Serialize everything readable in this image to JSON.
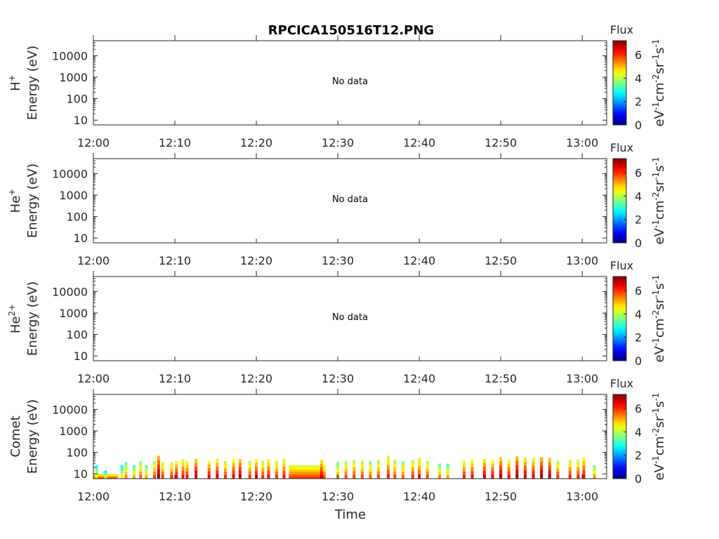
{
  "title": "RPCICA150516T12.PNG",
  "xlabel": "Time",
  "x_ticks": [
    "12:00",
    "12:10",
    "12:20",
    "12:30",
    "12:40",
    "12:50",
    "13:00"
  ],
  "y_ticks": [
    "10",
    "100",
    "1000",
    "10000"
  ],
  "colorbar": {
    "title": "Flux",
    "ticks": [
      "0",
      "2",
      "4",
      "6"
    ],
    "unit_base": [
      "eV",
      "cm",
      "sr",
      "s"
    ],
    "unit_exp": [
      "-1",
      "-2",
      "-1",
      "-1"
    ],
    "range": [
      0,
      7.2
    ],
    "colormap": "jet"
  },
  "no_data_text": "No data",
  "chart_data": [
    {
      "type": "heatmap",
      "species_base": "H",
      "species_sup": "+",
      "ylabel": "Energy (eV)",
      "yscale": "log",
      "ylim": [
        6,
        50000
      ],
      "xlim": [
        "12:00",
        "13:03"
      ],
      "has_data": false
    },
    {
      "type": "heatmap",
      "species_base": "He",
      "species_sup": "+",
      "ylabel": "Energy (eV)",
      "yscale": "log",
      "ylim": [
        6,
        50000
      ],
      "xlim": [
        "12:00",
        "13:03"
      ],
      "has_data": false
    },
    {
      "type": "heatmap",
      "species_base": "He",
      "species_sup": "2+",
      "ylabel": "Energy (eV)",
      "yscale": "log",
      "ylim": [
        6,
        50000
      ],
      "xlim": [
        "12:00",
        "13:03"
      ],
      "has_data": false
    },
    {
      "type": "heatmap",
      "species_base": "Comet",
      "species_sup": "",
      "ylabel": "Energy (eV)",
      "yscale": "log",
      "ylim": [
        6,
        50000
      ],
      "xlim": [
        "12:00",
        "13:03"
      ],
      "has_data": true,
      "x_unit": "minutes after 12:00",
      "bursts": [
        {
          "t": 0.4,
          "e_max": 25,
          "flux": 4.5
        },
        {
          "t": 1.5,
          "e_max": 14,
          "flux": 4.2
        },
        {
          "t": 3.5,
          "e_max": 25,
          "flux": 4.4
        },
        {
          "t": 4.0,
          "e_max": 35,
          "flux": 5.2
        },
        {
          "t": 5.0,
          "e_max": 25,
          "flux": 5.0
        },
        {
          "t": 5.8,
          "e_max": 40,
          "flux": 5.4
        },
        {
          "t": 6.5,
          "e_max": 25,
          "flux": 5.0
        },
        {
          "t": 7.5,
          "e_max": 40,
          "flux": 5.6
        },
        {
          "t": 8.0,
          "e_max": 70,
          "flux": 6.8
        },
        {
          "t": 8.5,
          "e_max": 35,
          "flux": 5.8
        },
        {
          "t": 9.6,
          "e_max": 35,
          "flux": 5.8
        },
        {
          "t": 10.2,
          "e_max": 40,
          "flux": 6.2
        },
        {
          "t": 11.0,
          "e_max": 50,
          "flux": 6.0
        },
        {
          "t": 11.5,
          "e_max": 40,
          "flux": 6.0
        },
        {
          "t": 12.6,
          "e_max": 50,
          "flux": 6.6
        },
        {
          "t": 14.2,
          "e_max": 40,
          "flux": 6.2
        },
        {
          "t": 15.2,
          "e_max": 50,
          "flux": 6.3
        },
        {
          "t": 16.2,
          "e_max": 40,
          "flux": 5.8
        },
        {
          "t": 17.2,
          "e_max": 50,
          "flux": 6.2
        },
        {
          "t": 18.0,
          "e_max": 50,
          "flux": 6.6
        },
        {
          "t": 19.2,
          "e_max": 40,
          "flux": 5.8
        },
        {
          "t": 20.0,
          "e_max": 50,
          "flux": 6.2
        },
        {
          "t": 20.8,
          "e_max": 40,
          "flux": 5.8
        },
        {
          "t": 21.5,
          "e_max": 50,
          "flux": 6.1
        },
        {
          "t": 22.5,
          "e_max": 40,
          "flux": 5.8
        },
        {
          "t": 23.4,
          "e_max": 50,
          "flux": 6.0
        },
        {
          "t": 28.0,
          "e_max": 45,
          "flux": 6.4
        },
        {
          "t": 30.0,
          "e_max": 35,
          "flux": 5.2
        },
        {
          "t": 31.0,
          "e_max": 40,
          "flux": 5.6
        },
        {
          "t": 32.0,
          "e_max": 45,
          "flux": 5.7
        },
        {
          "t": 33.0,
          "e_max": 40,
          "flux": 5.6
        },
        {
          "t": 34.0,
          "e_max": 40,
          "flux": 5.4
        },
        {
          "t": 35.0,
          "e_max": 45,
          "flux": 5.6
        },
        {
          "t": 36.2,
          "e_max": 70,
          "flux": 5.9
        },
        {
          "t": 37.0,
          "e_max": 45,
          "flux": 5.6
        },
        {
          "t": 38.0,
          "e_max": 40,
          "flux": 5.4
        },
        {
          "t": 39.2,
          "e_max": 45,
          "flux": 5.8
        },
        {
          "t": 40.0,
          "e_max": 55,
          "flux": 5.9
        },
        {
          "t": 41.0,
          "e_max": 40,
          "flux": 5.6
        },
        {
          "t": 42.5,
          "e_max": 30,
          "flux": 5.2
        },
        {
          "t": 43.5,
          "e_max": 30,
          "flux": 5.0
        },
        {
          "t": 45.5,
          "e_max": 40,
          "flux": 6.0
        },
        {
          "t": 46.5,
          "e_max": 45,
          "flux": 6.1
        },
        {
          "t": 48.0,
          "e_max": 50,
          "flux": 6.4
        },
        {
          "t": 49.0,
          "e_max": 45,
          "flux": 6.2
        },
        {
          "t": 50.0,
          "e_max": 60,
          "flux": 6.6
        },
        {
          "t": 51.0,
          "e_max": 45,
          "flux": 6.1
        },
        {
          "t": 52.0,
          "e_max": 65,
          "flux": 6.8
        },
        {
          "t": 53.0,
          "e_max": 55,
          "flux": 6.4
        },
        {
          "t": 54.0,
          "e_max": 55,
          "flux": 6.3
        },
        {
          "t": 55.0,
          "e_max": 60,
          "flux": 6.8
        },
        {
          "t": 56.0,
          "e_max": 55,
          "flux": 6.6
        },
        {
          "t": 57.0,
          "e_max": 40,
          "flux": 5.8
        },
        {
          "t": 58.5,
          "e_max": 45,
          "flux": 5.9
        },
        {
          "t": 59.5,
          "e_max": 45,
          "flux": 5.9
        },
        {
          "t": 60.2,
          "e_max": 60,
          "flux": 6.2
        },
        {
          "t": 61.5,
          "e_max": 25,
          "flux": 5.2
        }
      ],
      "bands": [
        {
          "t0": 0.0,
          "t1": 3.0,
          "e_min": 6,
          "e_max": 10,
          "flux": 5.2
        },
        {
          "t0": 24.0,
          "t1": 28.5,
          "e_min": 6,
          "e_max": 25,
          "flux": 5.3
        }
      ]
    }
  ]
}
